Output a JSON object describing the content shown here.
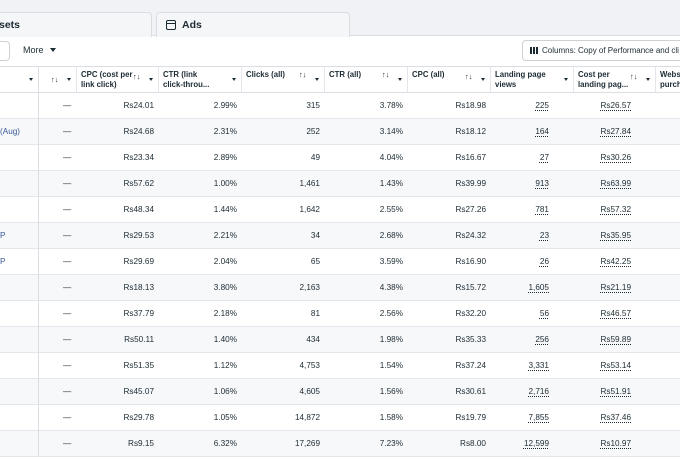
{
  "tabs": [
    {
      "label": "sets"
    },
    {
      "label": "Ads"
    }
  ],
  "toolbar": {
    "more_label": "More",
    "columns_label": "Columns: Copy of Performance and cli"
  },
  "headers": [
    {
      "label": "",
      "sort": false
    },
    {
      "label": "",
      "sort": true
    },
    {
      "label": "CPC (cost per\nlink click)",
      "sort": true
    },
    {
      "label": "CTR (link\nclick-throu...",
      "sort": false
    },
    {
      "label": "Clicks (all)",
      "sort": true
    },
    {
      "label": "CTR (all)",
      "sort": true
    },
    {
      "label": "CPC (all)",
      "sort": true
    },
    {
      "label": "Landing page\nviews",
      "sort": false
    },
    {
      "label": "Cost per\nlanding pag...",
      "sort": true
    },
    {
      "label": "Webs\npurch",
      "sort": false
    }
  ],
  "rows": [
    {
      "name": "",
      "result": "—",
      "cpc_link": "Rs24.01",
      "ctr_link": "2.99%",
      "clicks": "315",
      "ctr_all": "3.78%",
      "cpc_all": "Rs18.98",
      "lpv": "225",
      "cost_lpv": "Rs26.57"
    },
    {
      "name": "(Aug)",
      "result": "—",
      "cpc_link": "Rs24.68",
      "ctr_link": "2.31%",
      "clicks": "252",
      "ctr_all": "3.14%",
      "cpc_all": "Rs18.12",
      "lpv": "164",
      "cost_lpv": "Rs27.84"
    },
    {
      "name": "",
      "result": "—",
      "cpc_link": "Rs23.34",
      "ctr_link": "2.89%",
      "clicks": "49",
      "ctr_all": "4.04%",
      "cpc_all": "Rs16.67",
      "lpv": "27",
      "cost_lpv": "Rs30.26"
    },
    {
      "name": "",
      "result": "—",
      "cpc_link": "Rs57.62",
      "ctr_link": "1.00%",
      "clicks": "1,461",
      "ctr_all": "1.43%",
      "cpc_all": "Rs39.99",
      "lpv": "913",
      "cost_lpv": "Rs63.99"
    },
    {
      "name": "",
      "result": "—",
      "cpc_link": "Rs48.34",
      "ctr_link": "1.44%",
      "clicks": "1,642",
      "ctr_all": "2.55%",
      "cpc_all": "Rs27.26",
      "lpv": "781",
      "cost_lpv": "Rs57.32"
    },
    {
      "name": "P",
      "result": "—",
      "cpc_link": "Rs29.53",
      "ctr_link": "2.21%",
      "clicks": "34",
      "ctr_all": "2.68%",
      "cpc_all": "Rs24.32",
      "lpv": "23",
      "cost_lpv": "Rs35.95"
    },
    {
      "name": "P",
      "result": "—",
      "cpc_link": "Rs29.69",
      "ctr_link": "2.04%",
      "clicks": "65",
      "ctr_all": "3.59%",
      "cpc_all": "Rs16.90",
      "lpv": "26",
      "cost_lpv": "Rs42.25"
    },
    {
      "name": "",
      "result": "—",
      "cpc_link": "Rs18.13",
      "ctr_link": "3.80%",
      "clicks": "2,163",
      "ctr_all": "4.38%",
      "cpc_all": "Rs15.72",
      "lpv": "1,605",
      "cost_lpv": "Rs21.19"
    },
    {
      "name": "",
      "result": "—",
      "cpc_link": "Rs37.79",
      "ctr_link": "2.18%",
      "clicks": "81",
      "ctr_all": "2.56%",
      "cpc_all": "Rs32.20",
      "lpv": "56",
      "cost_lpv": "Rs46.57"
    },
    {
      "name": "",
      "result": "—",
      "cpc_link": "Rs50.11",
      "ctr_link": "1.40%",
      "clicks": "434",
      "ctr_all": "1.98%",
      "cpc_all": "Rs35.33",
      "lpv": "256",
      "cost_lpv": "Rs59.89"
    },
    {
      "name": "",
      "result": "—",
      "cpc_link": "Rs51.35",
      "ctr_link": "1.12%",
      "clicks": "4,753",
      "ctr_all": "1.54%",
      "cpc_all": "Rs37.24",
      "lpv": "3,331",
      "cost_lpv": "Rs53.14"
    },
    {
      "name": "",
      "result": "—",
      "cpc_link": "Rs45.07",
      "ctr_link": "1.06%",
      "clicks": "4,605",
      "ctr_all": "1.56%",
      "cpc_all": "Rs30.61",
      "lpv": "2,716",
      "cost_lpv": "Rs51.91"
    },
    {
      "name": "",
      "result": "—",
      "cpc_link": "Rs29.78",
      "ctr_link": "1.05%",
      "clicks": "14,872",
      "ctr_all": "1.58%",
      "cpc_all": "Rs19.79",
      "lpv": "7,855",
      "cost_lpv": "Rs37.46"
    },
    {
      "name": "",
      "result": "—",
      "cpc_link": "Rs9.15",
      "ctr_link": "6.32%",
      "clicks": "17,269",
      "ctr_all": "7.23%",
      "cpc_all": "Rs8.00",
      "lpv": "12,599",
      "cost_lpv": "Rs10.97"
    }
  ]
}
